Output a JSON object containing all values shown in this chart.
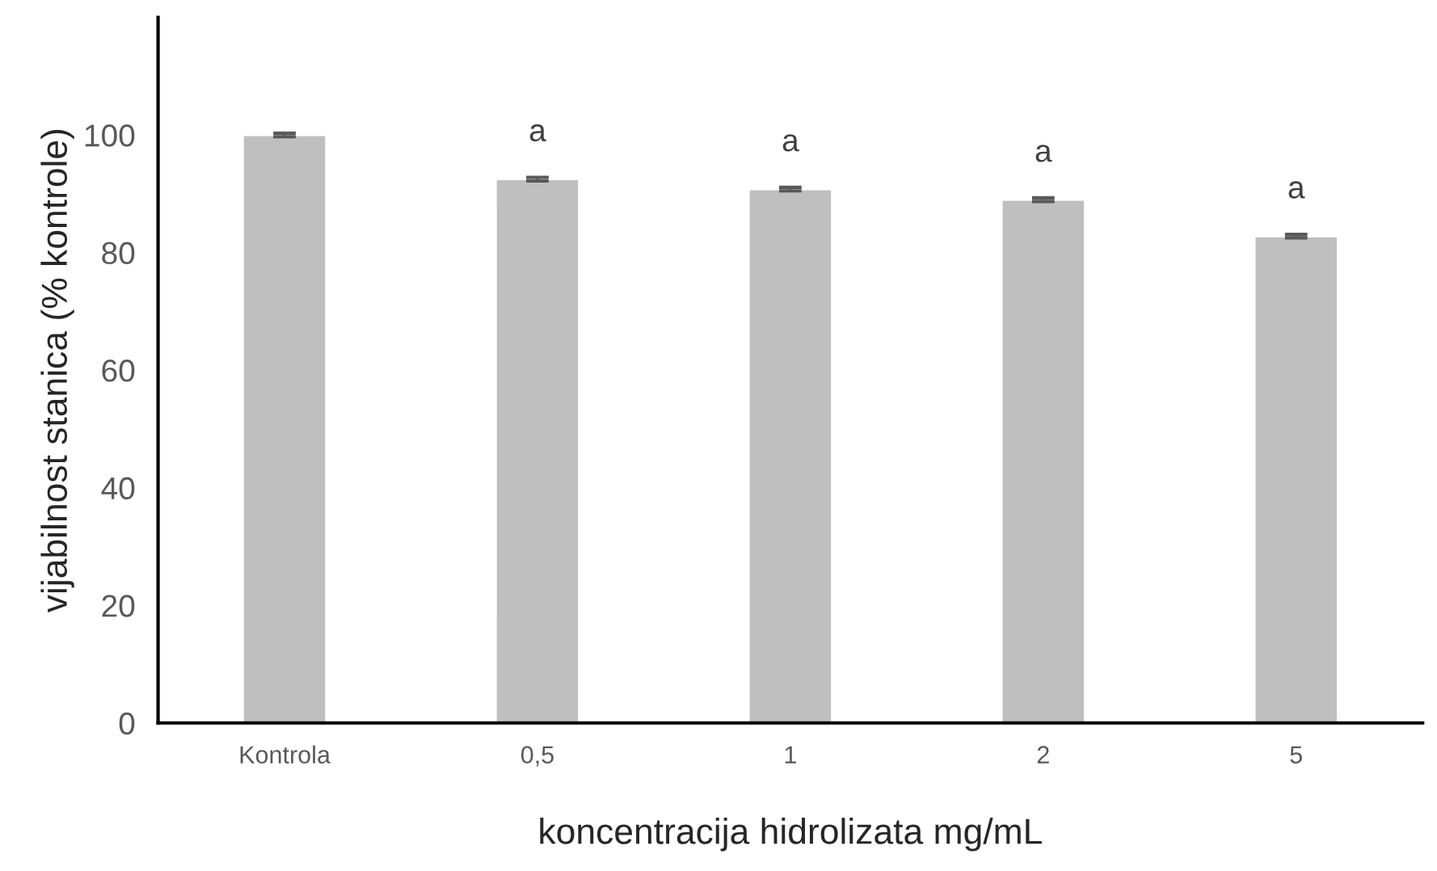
{
  "chart_data": {
    "type": "bar",
    "xlabel": "koncentracija hidrolizata mg/mL",
    "ylabel": "vijabilnost stanica (% kontrole)",
    "categories": [
      "Kontrola",
      "0,5",
      "1",
      "2",
      "5"
    ],
    "values": [
      100,
      92.5,
      90.8,
      89.0,
      82.8
    ],
    "errors": [
      0.3,
      0.3,
      0.3,
      0.3,
      0.3
    ],
    "color": "#bfbfbf",
    "ylim": [
      0,
      120
    ],
    "yticks": [
      0,
      20,
      40,
      60,
      80,
      100
    ],
    "annotations": [
      {
        "text": "a",
        "x": "0,5",
        "y": 92.5
      },
      {
        "text": "a",
        "x": "1",
        "y": 90.8
      },
      {
        "text": "a",
        "x": "2",
        "y": 89.0
      },
      {
        "text": "a",
        "x": "5",
        "y": 82.8
      }
    ],
    "grid": false,
    "legend": false
  }
}
